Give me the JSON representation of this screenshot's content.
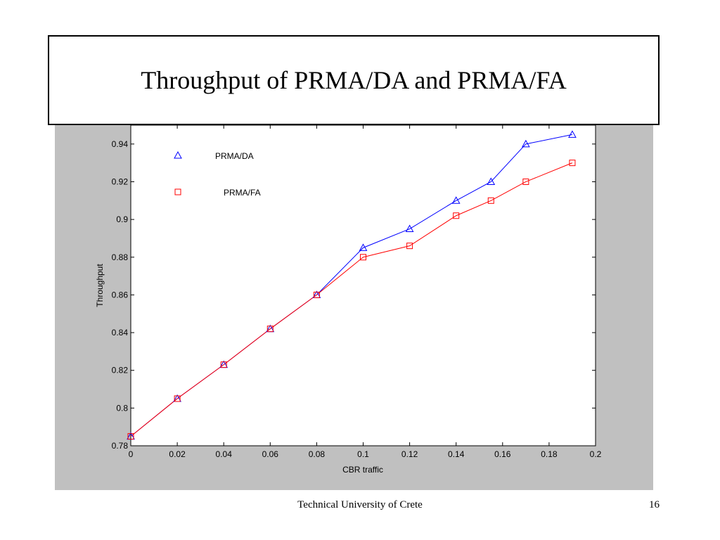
{
  "slide": {
    "title": "Throughput of PRMA/DA and PRMA/FA",
    "footer": "Technical University of Crete",
    "page_number": "16"
  },
  "colors": {
    "panel": "#c0c0c0",
    "plot_bg": "#ffffff",
    "da": "#0000ff",
    "fa": "#ff0000"
  },
  "chart_data": {
    "type": "line",
    "title": "",
    "xlabel": "CBR traffic",
    "ylabel": "Throughput",
    "xlim": [
      0,
      0.2
    ],
    "ylim": [
      0.78,
      0.95
    ],
    "xticks": [
      0,
      0.02,
      0.04,
      0.06,
      0.08,
      0.1,
      0.12,
      0.14,
      0.16,
      0.18,
      0.2
    ],
    "xtick_labels": [
      "0",
      "0.02",
      "0.04",
      "0.06",
      "0.08",
      "0.1",
      "0.12",
      "0.14",
      "0.16",
      "0.18",
      "0.2"
    ],
    "yticks": [
      0.78,
      0.8,
      0.82,
      0.84,
      0.86,
      0.88,
      0.9,
      0.92,
      0.94
    ],
    "ytick_labels": [
      "0.78",
      "0.8",
      "0.82",
      "0.84",
      "0.86",
      "0.88",
      "0.9",
      "0.92",
      "0.94"
    ],
    "grid": false,
    "legend_position": "top-left",
    "series": [
      {
        "name": "PRMA/DA",
        "marker": "triangle",
        "color": "#0000ff",
        "x": [
          0,
          0.02,
          0.04,
          0.06,
          0.08,
          0.1,
          0.12,
          0.14,
          0.155,
          0.17,
          0.19
        ],
        "y": [
          0.785,
          0.805,
          0.823,
          0.842,
          0.86,
          0.885,
          0.895,
          0.91,
          0.92,
          0.94,
          0.945
        ]
      },
      {
        "name": "PRMA/FA",
        "marker": "square",
        "color": "#ff0000",
        "x": [
          0,
          0.02,
          0.04,
          0.06,
          0.08,
          0.1,
          0.12,
          0.14,
          0.155,
          0.17,
          0.19
        ],
        "y": [
          0.785,
          0.805,
          0.823,
          0.842,
          0.86,
          0.88,
          0.886,
          0.902,
          0.91,
          0.92,
          0.93
        ]
      }
    ]
  }
}
